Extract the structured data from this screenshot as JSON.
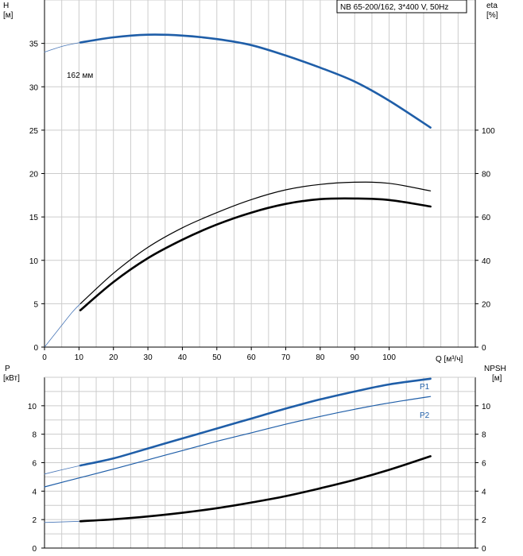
{
  "colors": {
    "blue": "#1f5ea8",
    "thin_blue": "#4a78b8",
    "grid": "#cccccc",
    "frame": "#000000",
    "curve": "#000000"
  },
  "legend_box": {
    "text": "NB 65-200/162, 3*400 V, 50Hz"
  },
  "chart_data": [
    {
      "type": "line",
      "name": "head-efficiency",
      "y_left_title": "H",
      "y_left_unit": "[м]",
      "y_right_title": "eta",
      "y_right_unit": "[%]",
      "xlabel": "Q [м³/ч]",
      "xlim": [
        0,
        125
      ],
      "ylim_left": [
        0,
        40
      ],
      "ylim_right": [
        0,
        160
      ],
      "x_ticks": [
        0,
        10,
        20,
        30,
        40,
        50,
        60,
        70,
        80,
        90,
        100
      ],
      "y_left_ticks": [
        0,
        5,
        10,
        15,
        20,
        25,
        30,
        35
      ],
      "y_right_ticks": [
        0,
        20,
        40,
        60,
        80,
        100
      ],
      "grid": true,
      "annotations": [
        {
          "text": "162 мм",
          "x": 7,
          "y": 35.3
        }
      ],
      "series": [
        {
          "axis": "left",
          "style": "extrapolated",
          "x": [
            0,
            3,
            6,
            9,
            10.4
          ],
          "y": [
            34.0,
            34.4,
            34.75,
            35.0,
            35.1
          ]
        },
        {
          "axis": "left",
          "style": "head",
          "x": [
            10.4,
            20,
            30,
            40,
            50,
            60,
            70,
            80,
            90,
            100,
            112
          ],
          "y": [
            35.1,
            35.7,
            36.0,
            35.9,
            35.5,
            34.8,
            33.6,
            32.2,
            30.6,
            28.4,
            25.3
          ]
        },
        {
          "axis": "right",
          "style": "extrapolated",
          "x": [
            0,
            4,
            8,
            10.4
          ],
          "y": [
            0,
            8,
            16,
            20
          ]
        },
        {
          "axis": "right",
          "style": "eta_thin",
          "x": [
            10.4,
            20,
            30,
            40,
            50,
            60,
            70,
            80,
            90,
            100,
            112
          ],
          "y": [
            20,
            34,
            46,
            55,
            62,
            68,
            72.5,
            75,
            76,
            75.5,
            72
          ]
        },
        {
          "axis": "right",
          "style": "eta_thick",
          "x": [
            10.4,
            20,
            30,
            40,
            50,
            60,
            70,
            80,
            90,
            100,
            112
          ],
          "y": [
            17,
            30,
            41,
            49.5,
            56.5,
            62,
            66,
            68.2,
            68.5,
            67.8,
            64.8
          ]
        }
      ]
    },
    {
      "type": "line",
      "name": "power-npsh",
      "y_left_title": "P",
      "y_left_unit": "[кВт]",
      "y_right_title": "NPSH",
      "y_right_unit": "[м]",
      "xlim": [
        0,
        125
      ],
      "ylim": [
        0,
        12
      ],
      "y_left_ticks": [
        0,
        2,
        4,
        6,
        8,
        10
      ],
      "y_right_ticks": [
        0,
        2,
        4,
        6,
        8,
        10
      ],
      "grid": true,
      "series": [
        {
          "name": "P1",
          "style": "p1",
          "x": [
            10.4,
            20,
            30,
            40,
            50,
            60,
            70,
            80,
            90,
            100,
            112
          ],
          "y": [
            5.8,
            6.3,
            7.0,
            7.7,
            8.4,
            9.1,
            9.8,
            10.45,
            11.0,
            11.5,
            11.9
          ]
        },
        {
          "style": "p1_ext",
          "x": [
            0,
            5,
            10.4
          ],
          "y": [
            5.2,
            5.5,
            5.8
          ]
        },
        {
          "name": "P2",
          "style": "p2",
          "x": [
            0,
            10.4,
            20,
            30,
            40,
            50,
            60,
            70,
            80,
            90,
            100,
            112
          ],
          "y": [
            4.3,
            4.95,
            5.55,
            6.2,
            6.85,
            7.5,
            8.1,
            8.7,
            9.25,
            9.75,
            10.2,
            10.65
          ]
        },
        {
          "style": "npsh_ext",
          "x": [
            0,
            10.4
          ],
          "y": [
            1.8,
            1.88
          ]
        },
        {
          "style": "npsh",
          "x": [
            10.4,
            20,
            30,
            40,
            50,
            60,
            70,
            80,
            90,
            100,
            112
          ],
          "y": [
            1.88,
            2.02,
            2.22,
            2.48,
            2.8,
            3.2,
            3.65,
            4.2,
            4.8,
            5.5,
            6.45
          ]
        }
      ]
    }
  ]
}
